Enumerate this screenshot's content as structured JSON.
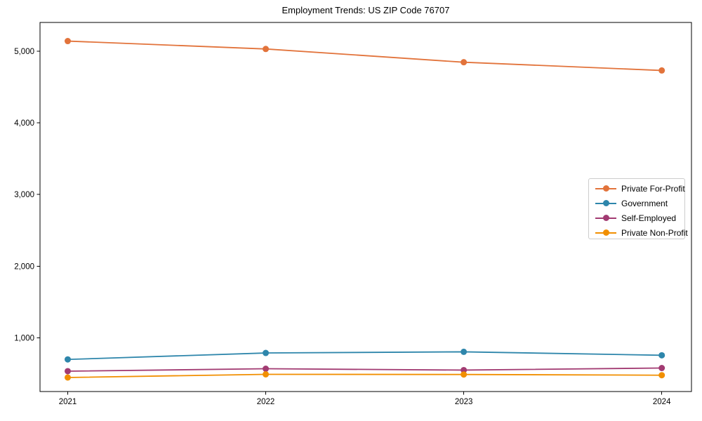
{
  "chart_data": {
    "type": "line",
    "title": "Employment Trends: US ZIP Code 76707",
    "xlabel": "",
    "ylabel": "",
    "x": [
      2021,
      2022,
      2023,
      2024
    ],
    "x_tick_labels": [
      "2021",
      "2022",
      "2023",
      "2024"
    ],
    "yticks": [
      1000,
      2000,
      3000,
      4000,
      5000
    ],
    "ytick_labels": [
      "1,000",
      "2,000",
      "3,000",
      "4,000",
      "5,000"
    ],
    "xlim": [
      2020.86,
      2024.15
    ],
    "ylim": [
      250,
      5400
    ],
    "grid": false,
    "legend_position": "center-right",
    "background_color": "#ffffff",
    "axis_color": "#000000",
    "series": [
      {
        "name": "Private For-Profit",
        "color": "#E2733B",
        "values": [
          5140,
          5030,
          4845,
          4730
        ]
      },
      {
        "name": "Government",
        "color": "#2E86AB",
        "values": [
          698,
          788,
          804,
          756
        ]
      },
      {
        "name": "Self-Employed",
        "color": "#A23B72",
        "values": [
          534,
          568,
          549,
          578
        ]
      },
      {
        "name": "Private Non-Profit",
        "color": "#F18F01",
        "values": [
          446,
          490,
          488,
          478
        ]
      }
    ]
  }
}
